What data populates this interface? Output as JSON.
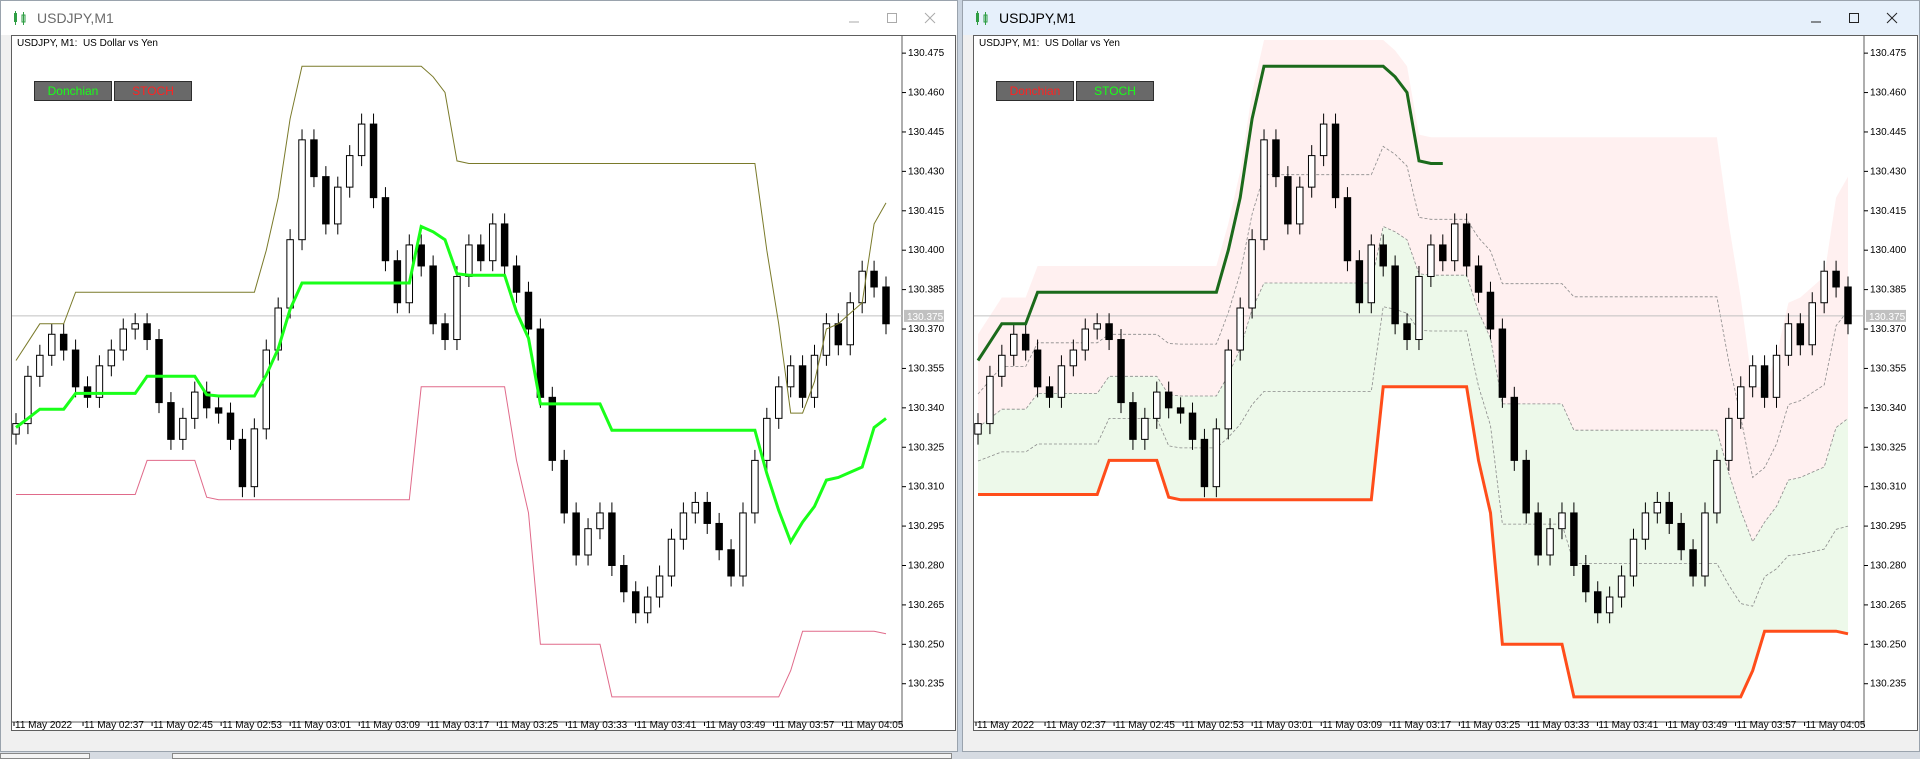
{
  "windows": [
    {
      "title": "USDJPY,M1",
      "chart_label": "USDJPY, M1:  US Dollar vs Yen",
      "buttons": [
        {
          "label": "Donchian",
          "color": "#19ff19"
        },
        {
          "label": "STOCH",
          "color": "#ff2222"
        }
      ]
    },
    {
      "title": "USDJPY,M1",
      "chart_label": "USDJPY, M1:  US Dollar vs Yen",
      "buttons": [
        {
          "label": "Donchian",
          "color": "#ff2222"
        },
        {
          "label": "STOCH",
          "color": "#19ff19"
        }
      ]
    }
  ],
  "chart_data": {
    "type": "candlestick",
    "symbol": "USDJPY",
    "timeframe": "M1",
    "ylim": [
      130.225,
      130.48
    ],
    "y_ticks": [
      130.475,
      130.46,
      130.445,
      130.43,
      130.415,
      130.4,
      130.385,
      130.37,
      130.355,
      130.34,
      130.325,
      130.31,
      130.295,
      130.28,
      130.265,
      130.25,
      130.235
    ],
    "current_price": 130.375,
    "current_price_label": "130.375",
    "x_ticks": [
      "11 May 2022",
      "11 May 02:37",
      "11 May 02:45",
      "11 May 02:53",
      "11 May 03:01",
      "11 May 03:09",
      "11 May 03:17",
      "11 May 03:25",
      "11 May 03:33",
      "11 May 03:41",
      "11 May 03:49",
      "11 May 03:57",
      "11 May 04:05"
    ],
    "close": [
      130.334,
      130.352,
      130.36,
      130.368,
      130.362,
      130.348,
      130.344,
      130.356,
      130.362,
      130.37,
      130.372,
      130.366,
      130.342,
      130.328,
      130.336,
      130.346,
      130.34,
      130.338,
      130.328,
      130.31,
      130.332,
      130.362,
      130.378,
      130.404,
      130.442,
      130.428,
      130.41,
      130.424,
      130.436,
      130.448,
      130.42,
      130.396,
      130.38,
      130.402,
      130.394,
      130.372,
      130.366,
      130.39,
      130.402,
      130.396,
      130.41,
      130.394,
      130.384,
      130.37,
      130.344,
      130.32,
      130.3,
      130.284,
      130.294,
      130.3,
      130.28,
      130.27,
      130.262,
      130.268,
      130.276,
      130.29,
      130.3,
      130.304,
      130.296,
      130.286,
      130.276,
      130.3,
      130.32,
      130.336,
      130.348,
      130.356,
      130.344,
      130.36,
      130.372,
      130.364,
      130.38,
      130.392,
      130.386,
      130.372
    ],
    "open": [
      130.33,
      130.334,
      130.352,
      130.36,
      130.368,
      130.362,
      130.348,
      130.344,
      130.356,
      130.362,
      130.37,
      130.372,
      130.366,
      130.342,
      130.328,
      130.336,
      130.346,
      130.34,
      130.338,
      130.328,
      130.31,
      130.332,
      130.362,
      130.378,
      130.404,
      130.442,
      130.428,
      130.41,
      130.424,
      130.436,
      130.448,
      130.42,
      130.396,
      130.38,
      130.402,
      130.394,
      130.372,
      130.366,
      130.39,
      130.402,
      130.396,
      130.41,
      130.394,
      130.384,
      130.37,
      130.344,
      130.32,
      130.3,
      130.284,
      130.294,
      130.3,
      130.28,
      130.27,
      130.262,
      130.268,
      130.276,
      130.29,
      130.3,
      130.304,
      130.296,
      130.286,
      130.276,
      130.3,
      130.32,
      130.336,
      130.348,
      130.356,
      130.344,
      130.36,
      130.372,
      130.364,
      130.38,
      130.392,
      130.386
    ],
    "upper_band_left": [
      130.358,
      130.365,
      130.372,
      130.372,
      130.372,
      130.384,
      130.384,
      130.384,
      130.384,
      130.384,
      130.384,
      130.384,
      130.384,
      130.384,
      130.384,
      130.384,
      130.384,
      130.384,
      130.384,
      130.384,
      130.384,
      130.4,
      130.42,
      130.45,
      130.47,
      130.47,
      130.47,
      130.47,
      130.47,
      130.47,
      130.47,
      130.47,
      130.47,
      130.47,
      130.47,
      130.466,
      130.46,
      130.434,
      130.433,
      130.433,
      130.433,
      130.433,
      130.433,
      130.433,
      130.433,
      130.433,
      130.433,
      130.433,
      130.433,
      130.433,
      130.433,
      130.433,
      130.433,
      130.433,
      130.433,
      130.433,
      130.433,
      130.433,
      130.433,
      130.433,
      130.433,
      130.433,
      130.433,
      130.4,
      130.372,
      130.338,
      130.338,
      130.35,
      130.37,
      130.372,
      130.376,
      130.38,
      130.41,
      130.418
    ],
    "lower_band_left": [
      130.307,
      130.307,
      130.307,
      130.307,
      130.307,
      130.307,
      130.307,
      130.307,
      130.307,
      130.307,
      130.307,
      130.32,
      130.32,
      130.32,
      130.32,
      130.32,
      130.306,
      130.305,
      130.305,
      130.305,
      130.305,
      130.305,
      130.305,
      130.305,
      130.305,
      130.305,
      130.305,
      130.305,
      130.305,
      130.305,
      130.305,
      130.305,
      130.305,
      130.305,
      130.348,
      130.348,
      130.348,
      130.348,
      130.348,
      130.348,
      130.348,
      130.348,
      130.32,
      130.3,
      130.25,
      130.25,
      130.25,
      130.25,
      130.25,
      130.25,
      130.23,
      130.23,
      130.23,
      130.23,
      130.23,
      130.23,
      130.23,
      130.23,
      130.23,
      130.23,
      130.23,
      130.23,
      130.23,
      130.23,
      130.23,
      130.24,
      130.255,
      130.255,
      130.255,
      130.255,
      130.255,
      130.255,
      130.255,
      130.254
    ]
  }
}
